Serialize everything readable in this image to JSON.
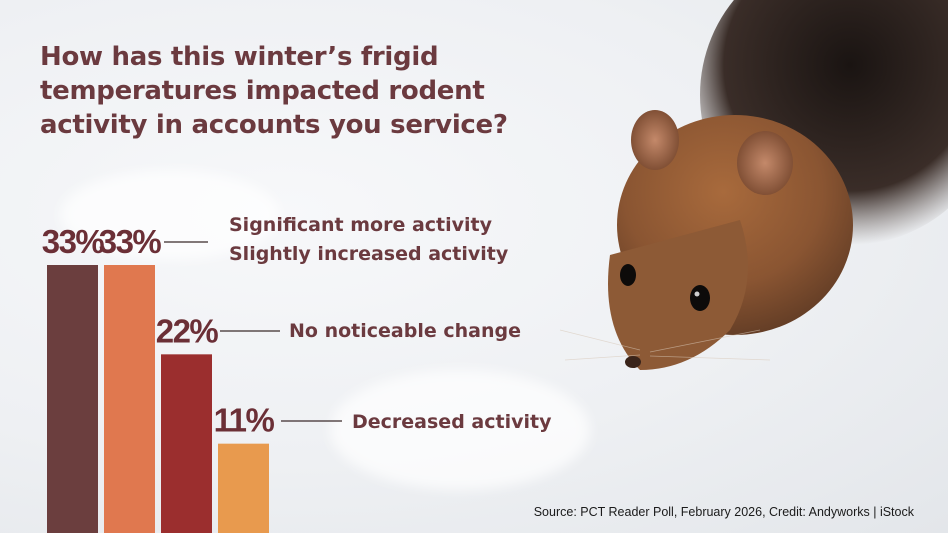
{
  "title": "How has this winter’s frigid temperatures impacted rodent activity in accounts you service?",
  "source": "Source: PCT Reader Poll, February 2026, Credit: Andyworks | iStock",
  "colors": {
    "title": "#6b3a3f",
    "background": "#eef0f3"
  },
  "chart_data": {
    "type": "bar",
    "title": "How has this winter’s frigid temperatures impacted rodent activity in accounts you service?",
    "categories": [
      "Significant more activity",
      "Slightly increased activity",
      "No noticeable change",
      "Decreased activity"
    ],
    "values": [
      33,
      33,
      22,
      11
    ],
    "value_labels": [
      "33%",
      "33%",
      "22%",
      "11%"
    ],
    "colors": [
      "#6b3e3e",
      "#e0784f",
      "#9b2e2e",
      "#e89a4e"
    ],
    "ylim": [
      0,
      33
    ],
    "xlabel": "",
    "ylabel": "",
    "grid": false,
    "legend": "none"
  }
}
